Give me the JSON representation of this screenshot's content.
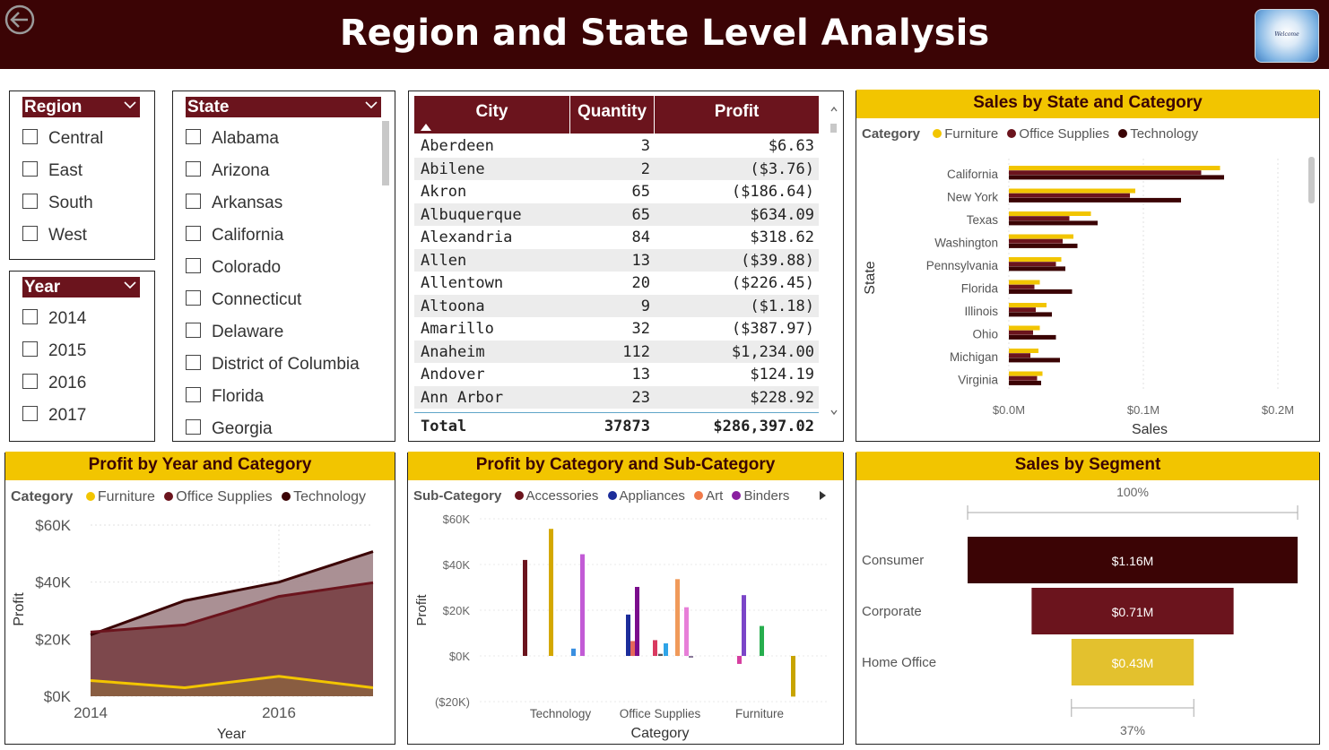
{
  "header": {
    "title": "Region and State Level Analysis",
    "logo_text": "Welcome"
  },
  "slicers": {
    "region": {
      "title": "Region",
      "items": [
        "Central",
        "East",
        "South",
        "West"
      ]
    },
    "year": {
      "title": "Year",
      "items": [
        "2014",
        "2015",
        "2016",
        "2017"
      ]
    },
    "state": {
      "title": "State",
      "items": [
        "Alabama",
        "Arizona",
        "Arkansas",
        "California",
        "Colorado",
        "Connecticut",
        "Delaware",
        "District of Columbia",
        "Florida",
        "Georgia"
      ]
    }
  },
  "table": {
    "columns": [
      "City",
      "Quantity",
      "Profit"
    ],
    "rows": [
      [
        "Aberdeen",
        "3",
        "$6.63"
      ],
      [
        "Abilene",
        "2",
        "($3.76)"
      ],
      [
        "Akron",
        "65",
        "($186.64)"
      ],
      [
        "Albuquerque",
        "65",
        "$634.09"
      ],
      [
        "Alexandria",
        "84",
        "$318.62"
      ],
      [
        "Allen",
        "13",
        "($39.88)"
      ],
      [
        "Allentown",
        "20",
        "($226.45)"
      ],
      [
        "Altoona",
        "9",
        "($1.18)"
      ],
      [
        "Amarillo",
        "32",
        "($387.97)"
      ],
      [
        "Anaheim",
        "112",
        "$1,234.00"
      ],
      [
        "Andover",
        "13",
        "$124.19"
      ],
      [
        "Ann Arbor",
        "23",
        "$228.92"
      ]
    ],
    "total": [
      "Total",
      "37873",
      "$286,397.02"
    ]
  },
  "colors": {
    "furniture": "#f2c500",
    "office_supplies": "#6b141d",
    "technology": "#3b0405",
    "header_bg": "#3b0405",
    "title_bar": "#f2c500"
  },
  "chart_data": [
    {
      "type": "bar",
      "title": "Sales by State and Category",
      "legend_title": "Category",
      "ylabel": "State",
      "xlabel": "Sales",
      "x_ticks": [
        "$0.0M",
        "$0.1M",
        "$0.2M"
      ],
      "xlim": [
        0,
        0.21
      ],
      "categories": [
        "California",
        "New York",
        "Texas",
        "Washington",
        "Pennsylvania",
        "Florida",
        "Illinois",
        "Ohio",
        "Michigan",
        "Virginia"
      ],
      "series": [
        {
          "name": "Furniture",
          "values": [
            0.157,
            0.094,
            0.061,
            0.048,
            0.039,
            0.023,
            0.028,
            0.023,
            0.022,
            0.025
          ]
        },
        {
          "name": "Office Supplies",
          "values": [
            0.143,
            0.09,
            0.045,
            0.04,
            0.035,
            0.019,
            0.02,
            0.018,
            0.016,
            0.021
          ]
        },
        {
          "name": "Technology",
          "values": [
            0.16,
            0.128,
            0.066,
            0.051,
            0.042,
            0.047,
            0.032,
            0.035,
            0.038,
            0.024
          ]
        }
      ]
    },
    {
      "type": "area",
      "title": "Profit by Year and Category",
      "legend_title": "Category",
      "xlabel": "Year",
      "ylabel": "Profit",
      "x_ticks": [
        "2014",
        "2016"
      ],
      "y_ticks": [
        "$0K",
        "$20K",
        "$40K",
        "$60K"
      ],
      "ylim": [
        0,
        60000
      ],
      "x": [
        2014,
        2015,
        2016,
        2017
      ],
      "series": [
        {
          "name": "Furniture",
          "values": [
            5500,
            3000,
            7000,
            3000
          ]
        },
        {
          "name": "Office Supplies",
          "values": [
            22500,
            25000,
            35000,
            39800
          ]
        },
        {
          "name": "Technology",
          "values": [
            21500,
            33500,
            40000,
            50700
          ]
        }
      ]
    },
    {
      "type": "bar",
      "title": "Profit by Category and Sub-Category",
      "legend_title": "Sub-Category",
      "legend": [
        "Accessories",
        "Appliances",
        "Art",
        "Binders"
      ],
      "xlabel": "Category",
      "ylabel": "Profit",
      "y_ticks": [
        "$60K",
        "$40K",
        "$20K",
        "$0K",
        "($20K)"
      ],
      "ylim": [
        -20000,
        60000
      ],
      "categories": [
        "Technology",
        "Office Supplies",
        "Furniture"
      ],
      "groups": [
        {
          "category": "Technology",
          "bars": [
            {
              "color": "#6b141d",
              "value": 42000
            },
            {
              "color": "#d4a800",
              "value": 55600
            },
            {
              "color": "#3a8fe0",
              "value": 3200
            },
            {
              "color": "#c25bd6",
              "value": 44500
            }
          ]
        },
        {
          "category": "Office Supplies",
          "bars": [
            {
              "color": "#1c2d9a",
              "value": 18100
            },
            {
              "color": "#e5675a",
              "value": 6500
            },
            {
              "color": "#7a0c8c",
              "value": 30200
            },
            {
              "color": "#d93a60",
              "value": 6900
            },
            {
              "color": "#555555",
              "value": 900
            },
            {
              "color": "#2fa4e7",
              "value": 5500
            },
            {
              "color": "#f09a5a",
              "value": 33600
            },
            {
              "color": "#e77fd8",
              "value": 21300
            },
            {
              "color": "#8a7a9a",
              "value": -800
            }
          ]
        },
        {
          "category": "Furniture",
          "bars": [
            {
              "color": "#d63fa0",
              "value": -3500
            },
            {
              "color": "#7b45c8",
              "value": 26600
            },
            {
              "color": "#27ae4e",
              "value": 13100
            },
            {
              "color": "#c8a400",
              "value": -17800
            }
          ]
        }
      ]
    },
    {
      "type": "bar",
      "title": "Sales by Segment",
      "top_label": "100%",
      "bottom_label": "37%",
      "categories": [
        "Consumer",
        "Corporate",
        "Home Office"
      ],
      "value_labels": [
        "$1.16M",
        "$0.71M",
        "$0.43M"
      ],
      "values": [
        1.16,
        0.71,
        0.43
      ],
      "colors": [
        "#3b0405",
        "#6b141d",
        "#e3c12e"
      ]
    }
  ]
}
